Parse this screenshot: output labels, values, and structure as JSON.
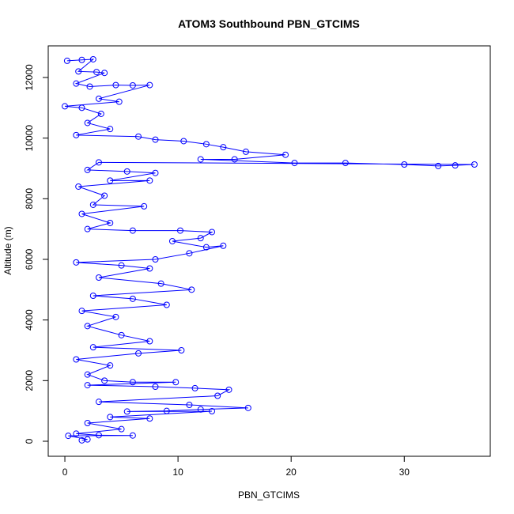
{
  "chart_data": {
    "type": "scatter",
    "title": "ATOM3 Southbound PBN_GTCIMS",
    "xlabel": "PBN_GTCIMS",
    "ylabel": "Altitude (m)",
    "color": "#0000ff",
    "connect": true,
    "xlim": [
      -1.47,
      37.6
    ],
    "ylim": [
      -496,
      13043
    ],
    "xticks": [
      0,
      10,
      20,
      30
    ],
    "yticks": [
      0,
      2000,
      4000,
      6000,
      8000,
      10000,
      12000
    ],
    "x": [
      0.2,
      1.5,
      2.5,
      1.2,
      2.8,
      3.5,
      1.0,
      2.2,
      4.5,
      6.0,
      7.5,
      3.0,
      4.8,
      0.0,
      1.5,
      3.2,
      2.0,
      4.0,
      1.0,
      6.5,
      8.0,
      10.5,
      12.5,
      14.0,
      16.0,
      19.5,
      15.0,
      12.0,
      20.3,
      24.8,
      30.0,
      33.0,
      34.5,
      36.2,
      3.0,
      2.0,
      5.5,
      8.0,
      4.0,
      7.5,
      1.2,
      3.5,
      2.5,
      7.0,
      1.5,
      4.0,
      2.0,
      6.0,
      10.2,
      13.0,
      12.0,
      9.5,
      12.5,
      14.0,
      11.0,
      8.0,
      1.0,
      5.0,
      7.5,
      3.0,
      8.5,
      11.2,
      2.5,
      6.0,
      9.0,
      1.5,
      4.5,
      2.0,
      5.0,
      7.5,
      2.5,
      10.3,
      6.5,
      1.0,
      4.0,
      2.0,
      3.5,
      6.0,
      9.8,
      2.0,
      8.0,
      11.5,
      14.5,
      13.5,
      3.0,
      11.0,
      16.2,
      12.0,
      9.0,
      5.5,
      13.0,
      4.0,
      7.5,
      2.0,
      5.0,
      1.0,
      3.0,
      6.0,
      0.3,
      2.0,
      1.5
    ],
    "y": [
      12550,
      12580,
      12600,
      12200,
      12180,
      12150,
      11800,
      11700,
      11750,
      11740,
      11750,
      11300,
      11200,
      11050,
      11000,
      10800,
      10500,
      10300,
      10100,
      10050,
      9950,
      9900,
      9800,
      9700,
      9550,
      9450,
      9300,
      9300,
      9180,
      9180,
      9130,
      9080,
      9100,
      9130,
      9200,
      8950,
      8900,
      8850,
      8600,
      8600,
      8400,
      8100,
      7800,
      7750,
      7500,
      7200,
      7000,
      6950,
      6950,
      6900,
      6700,
      6600,
      6400,
      6450,
      6200,
      6000,
      5900,
      5800,
      5700,
      5400,
      5200,
      5000,
      4800,
      4700,
      4500,
      4300,
      4100,
      3800,
      3500,
      3300,
      3100,
      3000,
      2900,
      2700,
      2500,
      2200,
      2000,
      1950,
      1950,
      1850,
      1800,
      1750,
      1700,
      1500,
      1300,
      1200,
      1100,
      1050,
      1000,
      980,
      990,
      800,
      750,
      600,
      400,
      250,
      200,
      190,
      180,
      60,
      30
    ]
  }
}
